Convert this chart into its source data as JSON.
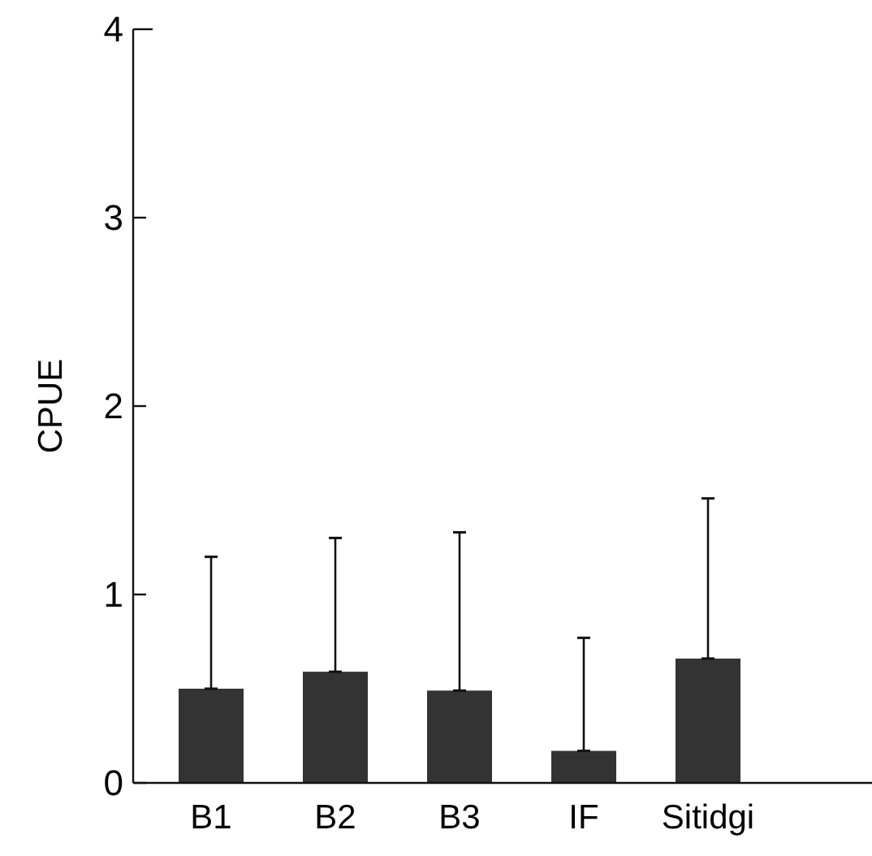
{
  "chart_data": {
    "type": "bar",
    "ylabel": "CPUE",
    "categories": [
      "B1",
      "B2",
      "B3",
      "IF",
      "Sitidgi"
    ],
    "values": [
      0.5,
      0.59,
      0.49,
      0.17,
      0.66
    ],
    "errors": [
      [
        0.5,
        1.2
      ],
      [
        0.59,
        1.3
      ],
      [
        0.49,
        1.33
      ],
      [
        0.17,
        0.77
      ],
      [
        0.66,
        1.51
      ]
    ],
    "color": "#333333",
    "ylim": [
      0,
      4
    ],
    "yticks": [
      0,
      1,
      2,
      3,
      4
    ]
  }
}
